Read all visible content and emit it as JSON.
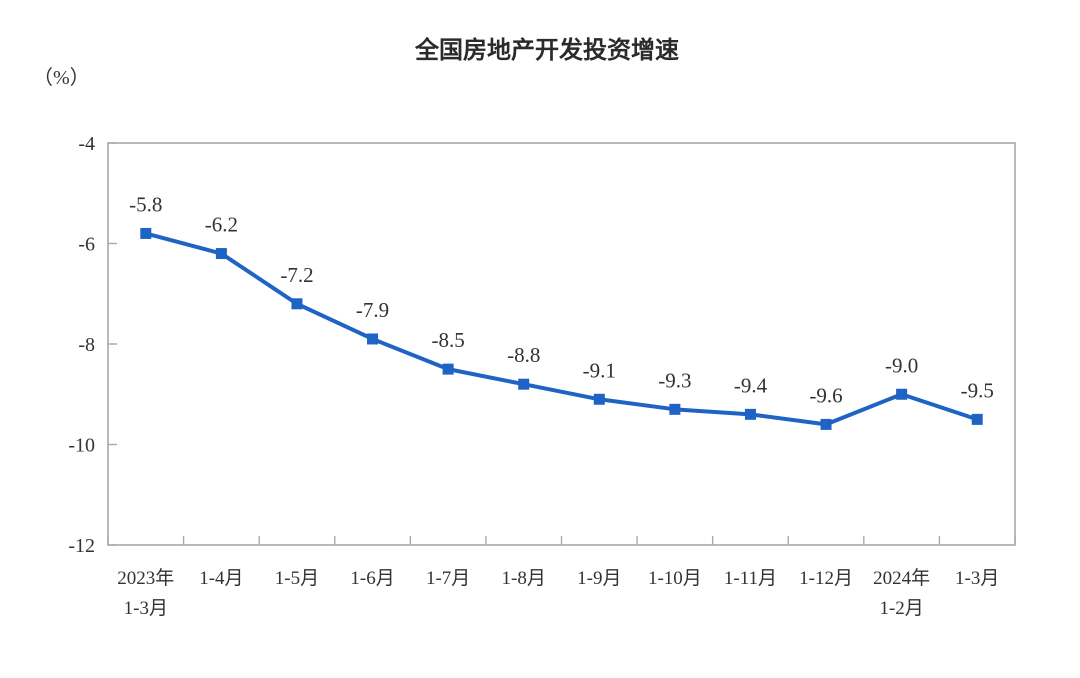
{
  "chart_data": {
    "type": "line",
    "title": "全国房地产开发投资增速",
    "unit_label": "（%）",
    "categories": [
      "2023年\n1-3月",
      "1-4月",
      "1-5月",
      "1-6月",
      "1-7月",
      "1-8月",
      "1-9月",
      "1-10月",
      "1-11月",
      "1-12月",
      "2024年\n1-2月",
      "1-3月"
    ],
    "values": [
      -5.8,
      -6.2,
      -7.2,
      -7.9,
      -8.5,
      -8.8,
      -9.1,
      -9.3,
      -9.4,
      -9.6,
      -9.0,
      -9.5
    ],
    "data_labels": [
      "-5.8",
      "-6.2",
      "-7.2",
      "-7.9",
      "-8.5",
      "-8.8",
      "-9.1",
      "-9.3",
      "-9.4",
      "-9.6",
      "-9.0",
      "-9.5"
    ],
    "y_ticks": [
      -4,
      -6,
      -8,
      -10,
      -12
    ],
    "ylim": [
      -12,
      -4
    ],
    "grid": false,
    "legend": "none",
    "marker": "square",
    "colors": {
      "line": "#1F63C5",
      "axis": "#A9A9A9",
      "text": "#333333",
      "title": "#2B2B2B",
      "background": "#FFFFFF"
    }
  }
}
